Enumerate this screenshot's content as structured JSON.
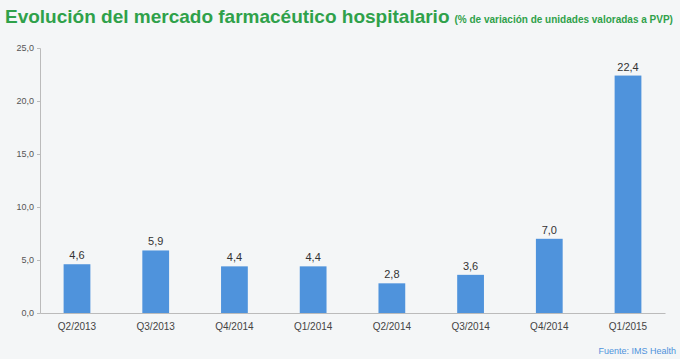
{
  "chart_data": {
    "type": "bar",
    "title": "Evolución del mercado farmacéutico hospitalario",
    "subtitle": "(% de variación de unidades valoradas a PVP)",
    "source": "Fuente: IMS Health",
    "categories": [
      "Q2/2013",
      "Q3/2013",
      "Q4/2014",
      "Q1/2014",
      "Q2/2014",
      "Q3/2014",
      "Q4/2014",
      "Q1/2015"
    ],
    "values": [
      4.6,
      5.9,
      4.4,
      4.4,
      2.8,
      3.6,
      7.0,
      22.4
    ],
    "value_labels": [
      "4,6",
      "5,9",
      "4,4",
      "4,4",
      "2,8",
      "3,6",
      "7,0",
      "22,4"
    ],
    "color": "#4f93dc",
    "ylim": [
      0,
      25
    ],
    "yticks": [
      {
        "value": 0,
        "label": "0,0"
      },
      {
        "value": 5,
        "label": "5,0"
      },
      {
        "value": 10,
        "label": "10,0"
      },
      {
        "value": 15,
        "label": "15,0"
      },
      {
        "value": 20,
        "label": "20,0"
      },
      {
        "value": 25,
        "label": "25,0"
      }
    ],
    "grid": false,
    "data_labels": true
  }
}
